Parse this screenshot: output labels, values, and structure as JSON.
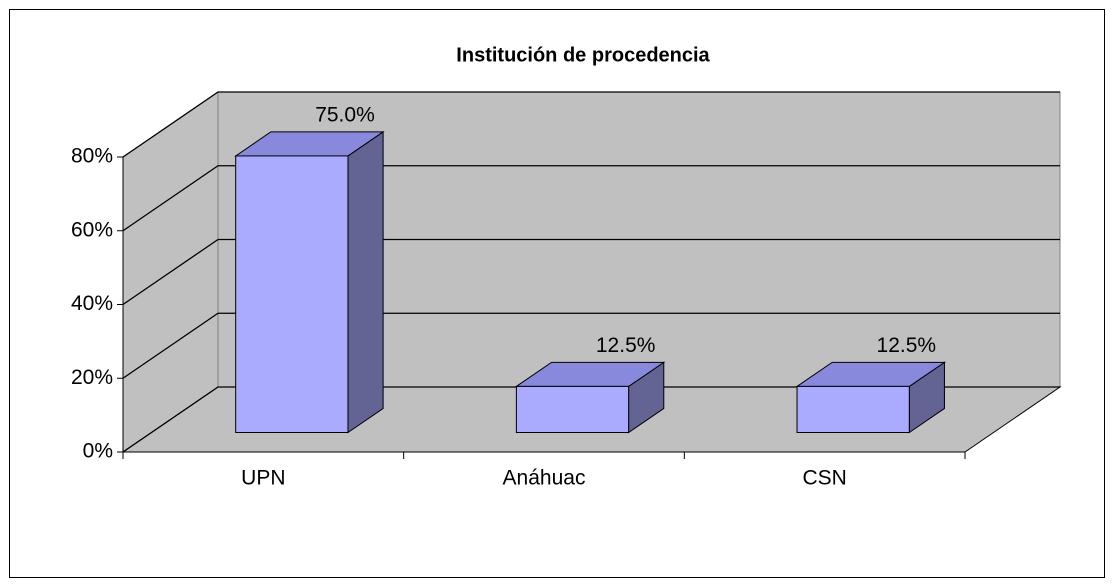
{
  "chart_data": {
    "type": "bar3d",
    "title": "Institución de procedencia",
    "categories": [
      "UPN",
      "Anáhuac",
      "CSN"
    ],
    "values": [
      75,
      12.5,
      12.5
    ],
    "value_labels": [
      "75.0%",
      "12.5%",
      "12.5%"
    ],
    "color": "#aaaaff",
    "ylim": [
      0,
      80
    ],
    "yticks": [
      {
        "value": 0,
        "label": "0%"
      },
      {
        "value": 20,
        "label": "20%"
      },
      {
        "value": 40,
        "label": "40%"
      },
      {
        "value": 60,
        "label": "60%"
      },
      {
        "value": 80,
        "label": "80%"
      }
    ],
    "grid": true
  }
}
